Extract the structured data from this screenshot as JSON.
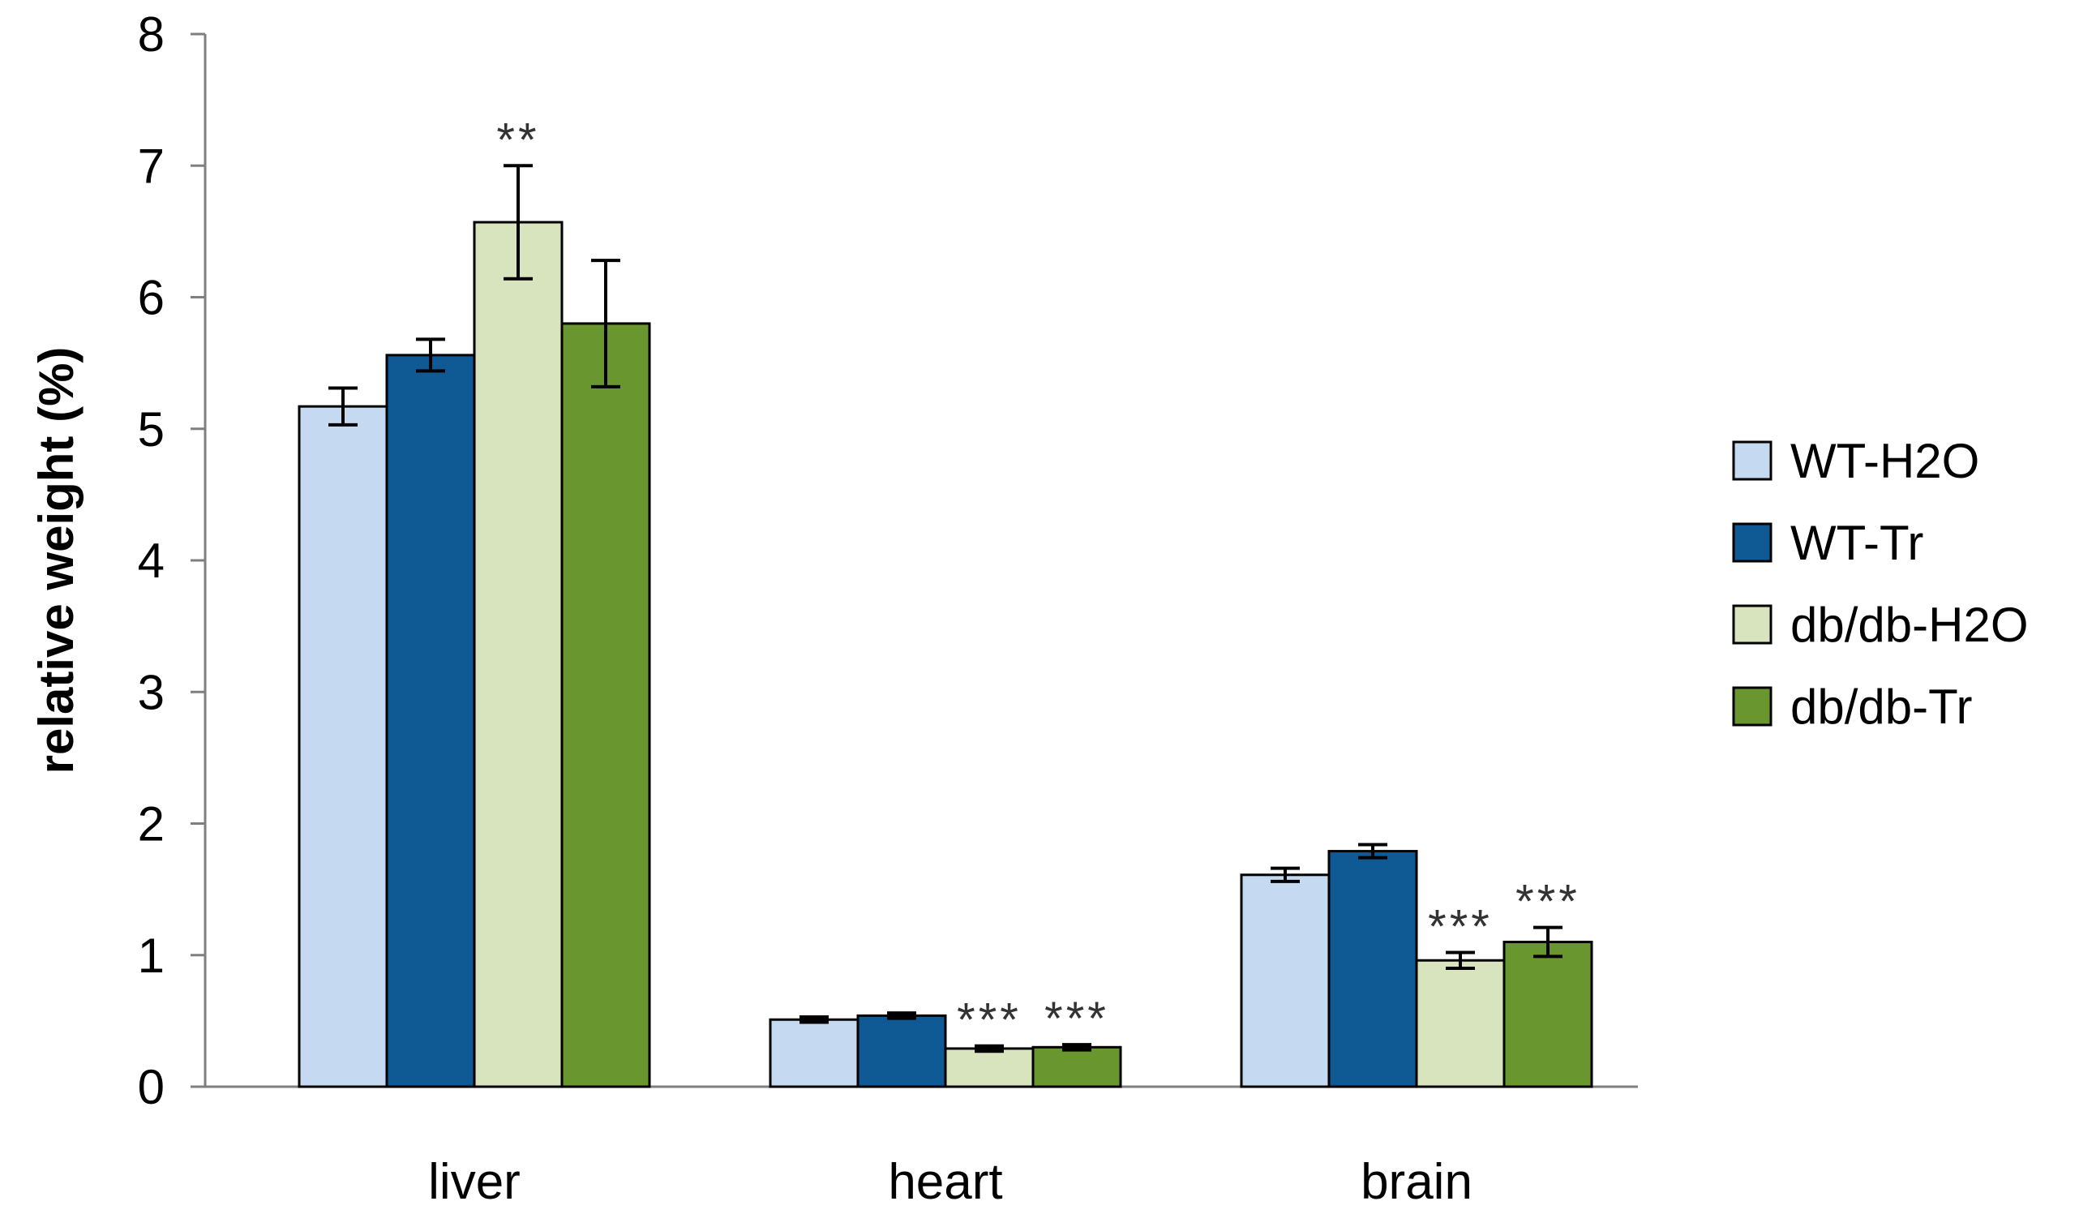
{
  "chart_data": {
    "type": "bar",
    "title": "",
    "xlabel": "",
    "ylabel": "relative weight (%)",
    "ylim": [
      0,
      8
    ],
    "yticks": [
      "0",
      "1",
      "2",
      "3",
      "4",
      "5",
      "6",
      "7",
      "8"
    ],
    "grid": false,
    "legend_position": "right",
    "categories": [
      "liver",
      "heart",
      "brain"
    ],
    "series": [
      {
        "name": "WT-H2O",
        "color": "#c5d9f1",
        "values": [
          5.17,
          0.51,
          1.61
        ],
        "errors": [
          0.14,
          0.02,
          0.05
        ]
      },
      {
        "name": "WT-Tr",
        "color": "#0f5a94",
        "values": [
          5.56,
          0.54,
          1.79
        ],
        "errors": [
          0.12,
          0.02,
          0.05
        ]
      },
      {
        "name": "db/db-H2O",
        "color": "#d7e4bd",
        "values": [
          6.57,
          0.29,
          0.96
        ],
        "errors": [
          0.43,
          0.02,
          0.06
        ]
      },
      {
        "name": "db/db-Tr",
        "color": "#6a9630",
        "values": [
          5.8,
          0.3,
          1.1
        ],
        "errors": [
          0.48,
          0.02,
          0.11
        ]
      }
    ],
    "annotations": [
      {
        "text": "**",
        "category": "liver",
        "series": "db/db-H2O"
      },
      {
        "text": "***",
        "category": "heart",
        "series": "db/db-H2O"
      },
      {
        "text": "***",
        "category": "heart",
        "series": "db/db-Tr"
      },
      {
        "text": "***",
        "category": "brain",
        "series": "db/db-H2O"
      },
      {
        "text": "***",
        "category": "brain",
        "series": "db/db-Tr"
      }
    ]
  }
}
